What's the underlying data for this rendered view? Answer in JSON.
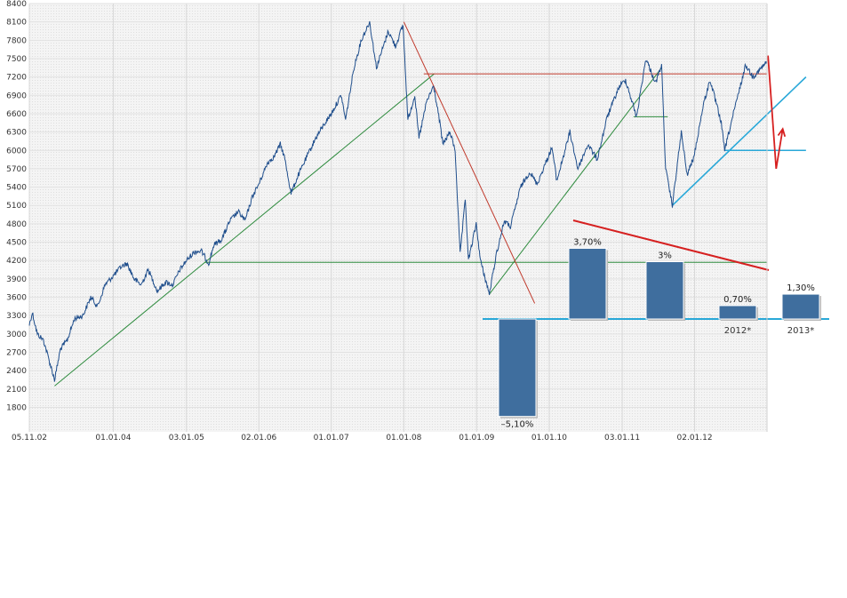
{
  "chart_data": [
    {
      "type": "line",
      "title": "",
      "xlabel": "",
      "ylabel": "",
      "ylim": [
        1400,
        8400
      ],
      "xlim": [
        "2002-11-05",
        "2012-12-31"
      ],
      "grid": true,
      "y_ticks": [
        8400,
        8100,
        7800,
        7500,
        7200,
        6900,
        6600,
        6300,
        6000,
        5700,
        5400,
        5100,
        4800,
        4500,
        4200,
        3900,
        3600,
        3300,
        3000,
        2700,
        2400,
        2100,
        1800
      ],
      "x_ticks": [
        {
          "label": "05.11.02",
          "date": "2002-11-05"
        },
        {
          "label": "01.01.04",
          "date": "2004-01-01"
        },
        {
          "label": "03.01.05",
          "date": "2005-01-03"
        },
        {
          "label": "02.01.06",
          "date": "2006-01-02"
        },
        {
          "label": "01.01.07",
          "date": "2007-01-01"
        },
        {
          "label": "01.01.08",
          "date": "2008-01-01"
        },
        {
          "label": "01.01.09",
          "date": "2009-01-01"
        },
        {
          "label": "01.01.10",
          "date": "2010-01-01"
        },
        {
          "label": "03.01.11",
          "date": "2011-01-03"
        },
        {
          "label": "02.01.12",
          "date": "2012-01-02"
        }
      ],
      "series": [
        {
          "color": "#1f4e8c",
          "points": [
            [
              "2002-11-05",
              3150
            ],
            [
              "2002-11-20",
              3350
            ],
            [
              "2002-12-15",
              3000
            ],
            [
              "2003-01-15",
              2900
            ],
            [
              "2003-02-10",
              2600
            ],
            [
              "2003-03-12",
              2250
            ],
            [
              "2003-04-10",
              2750
            ],
            [
              "2003-05-15",
              2900
            ],
            [
              "2003-06-20",
              3250
            ],
            [
              "2003-08-01",
              3300
            ],
            [
              "2003-09-10",
              3600
            ],
            [
              "2003-10-15",
              3450
            ],
            [
              "2003-11-20",
              3800
            ],
            [
              "2004-01-01",
              3950
            ],
            [
              "2004-02-10",
              4100
            ],
            [
              "2004-03-10",
              4150
            ],
            [
              "2004-04-15",
              3900
            ],
            [
              "2004-05-20",
              3800
            ],
            [
              "2004-06-25",
              4050
            ],
            [
              "2004-08-10",
              3700
            ],
            [
              "2004-09-20",
              3850
            ],
            [
              "2004-10-25",
              3800
            ],
            [
              "2004-12-01",
              4050
            ],
            [
              "2005-01-03",
              4200
            ],
            [
              "2005-02-15",
              4350
            ],
            [
              "2005-03-20",
              4350
            ],
            [
              "2005-04-25",
              4150
            ],
            [
              "2005-05-20",
              4450
            ],
            [
              "2005-06-30",
              4550
            ],
            [
              "2005-08-10",
              4850
            ],
            [
              "2005-09-20",
              5000
            ],
            [
              "2005-10-25",
              4850
            ],
            [
              "2005-12-01",
              5250
            ],
            [
              "2006-01-02",
              5450
            ],
            [
              "2006-02-15",
              5800
            ],
            [
              "2006-03-20",
              5900
            ],
            [
              "2006-04-20",
              6100
            ],
            [
              "2006-05-10",
              5900
            ],
            [
              "2006-06-13",
              5300
            ],
            [
              "2006-07-20",
              5600
            ],
            [
              "2006-09-01",
              5900
            ],
            [
              "2006-10-15",
              6200
            ],
            [
              "2006-12-01",
              6450
            ],
            [
              "2007-01-01",
              6600
            ],
            [
              "2007-02-20",
              6900
            ],
            [
              "2007-03-14",
              6500
            ],
            [
              "2007-04-25",
              7350
            ],
            [
              "2007-06-01",
              7800
            ],
            [
              "2007-07-13",
              8100
            ],
            [
              "2007-08-16",
              7350
            ],
            [
              "2007-09-20",
              7700
            ],
            [
              "2007-10-15",
              7950
            ],
            [
              "2007-11-20",
              7700
            ],
            [
              "2007-12-28",
              8050
            ],
            [
              "2008-01-21",
              6500
            ],
            [
              "2008-02-25",
              6900
            ],
            [
              "2008-03-17",
              6200
            ],
            [
              "2008-04-25",
              6800
            ],
            [
              "2008-05-30",
              7050
            ],
            [
              "2008-06-30",
              6450
            ],
            [
              "2008-07-15",
              6100
            ],
            [
              "2008-08-20",
              6300
            ],
            [
              "2008-09-15",
              6000
            ],
            [
              "2008-10-10",
              4300
            ],
            [
              "2008-11-05",
              5200
            ],
            [
              "2008-11-21",
              4200
            ],
            [
              "2008-12-30",
              4800
            ],
            [
              "2009-01-20",
              4200
            ],
            [
              "2009-03-06",
              3650
            ],
            [
              "2009-04-10",
              4300
            ],
            [
              "2009-05-20",
              4850
            ],
            [
              "2009-06-20",
              4750
            ],
            [
              "2009-08-10",
              5400
            ],
            [
              "2009-09-25",
              5650
            ],
            [
              "2009-11-01",
              5450
            ],
            [
              "2010-01-15",
              6050
            ],
            [
              "2010-02-08",
              5500
            ],
            [
              "2010-04-15",
              6300
            ],
            [
              "2010-05-25",
              5700
            ],
            [
              "2010-07-15",
              6100
            ],
            [
              "2010-08-30",
              5850
            ],
            [
              "2010-10-20",
              6550
            ],
            [
              "2010-12-20",
              7050
            ],
            [
              "2011-01-20",
              7150
            ],
            [
              "2011-03-16",
              6550
            ],
            [
              "2011-05-02",
              7500
            ],
            [
              "2011-06-20",
              7100
            ],
            [
              "2011-07-20",
              7400
            ],
            [
              "2011-08-09",
              5700
            ],
            [
              "2011-09-12",
              5100
            ],
            [
              "2011-10-27",
              6300
            ],
            [
              "2011-11-25",
              5600
            ],
            [
              "2011-12-30",
              5900
            ],
            [
              "2012-02-15",
              6750
            ],
            [
              "2012-03-20",
              7150
            ],
            [
              "2012-05-15",
              6450
            ],
            [
              "2012-06-01",
              6000
            ],
            [
              "2012-07-15",
              6600
            ],
            [
              "2012-09-15",
              7400
            ],
            [
              "2012-10-20",
              7200
            ],
            [
              "2012-11-20",
              7300
            ],
            [
              "2012-12-31",
              7450
            ]
          ]
        }
      ],
      "annotations": [
        {
          "kind": "trendline",
          "color": "#2e8b3e",
          "from": [
            "2003-03-12",
            2150
          ],
          "to": [
            "2008-06-01",
            7250
          ]
        },
        {
          "kind": "trendline",
          "color": "#2e8b3e",
          "from": [
            "2005-04-05",
            4170
          ],
          "to": [
            "2012-12-31",
            4170
          ]
        },
        {
          "kind": "trendline",
          "color": "#2e8b3e",
          "from": [
            "2009-03-06",
            3650
          ],
          "to": [
            "2011-07-20",
            7350
          ]
        },
        {
          "kind": "trendline",
          "color": "#2e8b3e",
          "from": [
            "2011-03-01",
            6550
          ],
          "to": [
            "2011-08-20",
            6550
          ]
        },
        {
          "kind": "trendline",
          "color": "#c0392b",
          "from": [
            "2008-01-01",
            8100
          ],
          "to": [
            "2009-10-20",
            3500
          ]
        },
        {
          "kind": "trendline",
          "color": "#c0392b",
          "from": [
            "2008-04-10",
            7250
          ],
          "to": [
            "2012-12-31",
            7250
          ]
        },
        {
          "kind": "trendline",
          "color": "#29a8d8",
          "from": [
            "2011-09-12",
            5100
          ],
          "to": [
            "2013-07-15",
            7200
          ]
        },
        {
          "kind": "trendline",
          "color": "#29a8d8",
          "from": [
            "2012-06-01",
            6000
          ],
          "to": [
            "2013-07-15",
            6000
          ]
        },
        {
          "kind": "forecast-arrow",
          "color": "#d62020",
          "path": [
            [
              "2013-01-05",
              7550
            ],
            [
              "2013-02-15",
              5700
            ],
            [
              "2013-03-20",
              6350
            ]
          ]
        }
      ]
    },
    {
      "type": "bar",
      "title": "",
      "categories": [
        "",
        "",
        "",
        "",
        "2012*",
        "2013*"
      ],
      "values": [
        -5.1,
        3.7,
        3.0,
        null,
        0.7,
        1.3
      ],
      "labels": [
        "–5,10%",
        "3,70%",
        "3%",
        "",
        "0,70%",
        "1,30%"
      ],
      "bar_color": "#3f6e9e",
      "baseline_color": "#29a8d8",
      "trend_line_color": "#d62020"
    }
  ]
}
